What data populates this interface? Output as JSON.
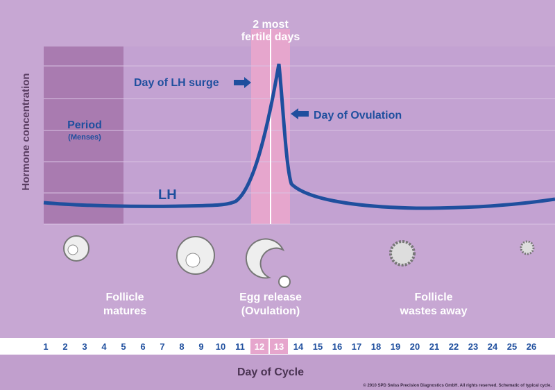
{
  "header": {
    "title_lines": [
      "2 most",
      "fertile days"
    ]
  },
  "y_axis_label": "Hormone concentration",
  "annotations": {
    "lh_surge": "Day of LH surge",
    "ovulation": "Day of Ovulation",
    "curve_label": "LH",
    "period": "Period",
    "period_sub": "(Menses)"
  },
  "phases": [
    {
      "label_lines": [
        "Follicle",
        "matures"
      ]
    },
    {
      "label_lines": [
        "Egg release",
        "(Ovulation)"
      ]
    },
    {
      "label_lines": [
        "Follicle",
        "wastes away"
      ]
    }
  ],
  "days": [
    1,
    2,
    3,
    4,
    5,
    6,
    7,
    8,
    9,
    10,
    11,
    12,
    13,
    14,
    15,
    16,
    17,
    18,
    19,
    20,
    21,
    22,
    23,
    24,
    25,
    26
  ],
  "fertile_days": [
    12,
    13
  ],
  "x_axis_label": "Day of Cycle",
  "copyright": "© 2010 SPD Swiss Precision Diagnostics GmbH. All rights reserved. Schematic of typical cycle."
}
